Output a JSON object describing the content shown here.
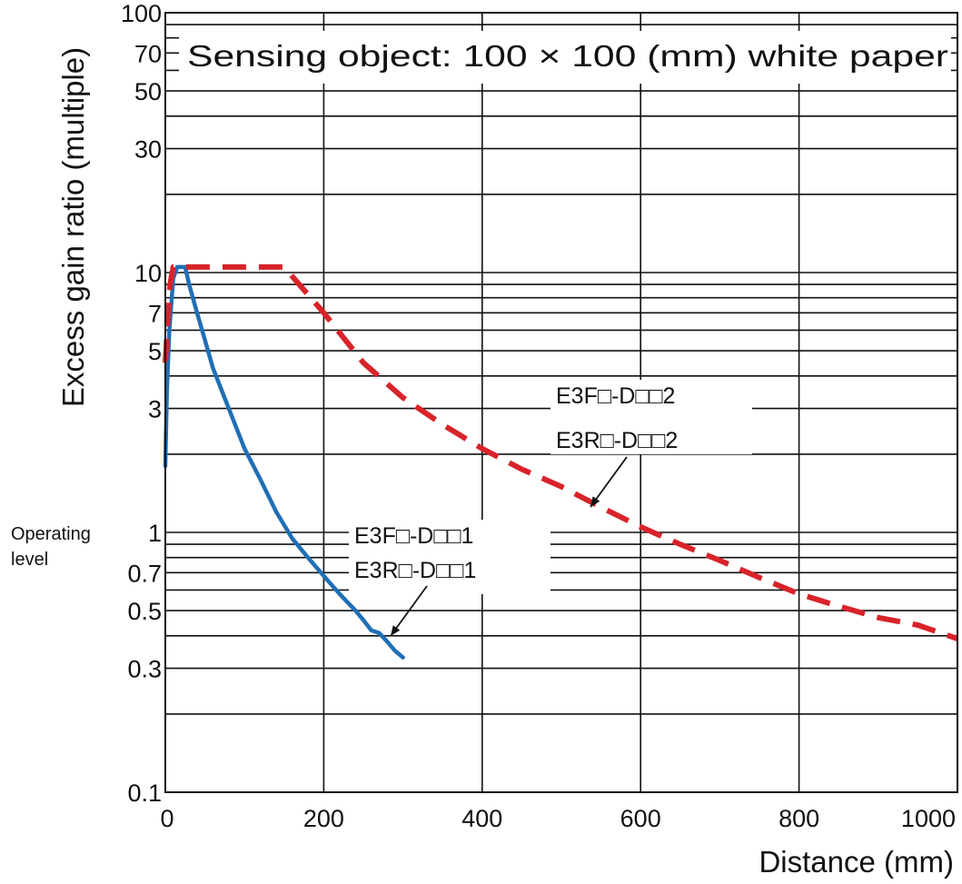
{
  "chart_data": {
    "type": "line",
    "xlabel": "Distance (mm)",
    "ylabel": "Excess gain ratio (multiple)",
    "annotation": "Sensing object: 100 × 100 (mm) white paper",
    "xlim": [
      0,
      1000
    ],
    "ylim": [
      0.1,
      100
    ],
    "yscale": "log",
    "grid": true,
    "x_ticks": [
      0,
      200,
      400,
      600,
      800,
      1000
    ],
    "x_tick_labels": [
      "0",
      "200",
      "400",
      "600",
      "800",
      "1000"
    ],
    "y_ticks": [
      0.1,
      0.3,
      0.5,
      0.7,
      1,
      3,
      5,
      7,
      10,
      30,
      50,
      70,
      100
    ],
    "y_tick_labels": [
      "0.1",
      "0.3",
      "0.5",
      "0.7",
      "1",
      "3",
      "5",
      "7",
      "10",
      "30",
      "50",
      "70",
      "100"
    ],
    "y_grid_lines": [
      0.2,
      0.3,
      0.4,
      0.5,
      0.6,
      0.7,
      0.8,
      0.9,
      1,
      2,
      3,
      4,
      5,
      6,
      7,
      8,
      9,
      10,
      20,
      30,
      40,
      50,
      60,
      70,
      80,
      90,
      100
    ],
    "operating_level_label": "Operating level",
    "series": [
      {
        "name_lines": [
          "E3F□-D□□1",
          "E3R□-D□□1"
        ],
        "color": "#1f6fb5",
        "style": "solid",
        "x": [
          0,
          2,
          5,
          10,
          15,
          20,
          25,
          30,
          40,
          50,
          60,
          80,
          100,
          120,
          140,
          160,
          180,
          200,
          220,
          240,
          250,
          260,
          270,
          280,
          290,
          300
        ],
        "y": [
          1.8,
          3.5,
          6,
          9.5,
          10.5,
          10.5,
          10.5,
          9,
          7,
          5.5,
          4.3,
          3,
          2.1,
          1.6,
          1.2,
          0.95,
          0.8,
          0.68,
          0.58,
          0.5,
          0.46,
          0.42,
          0.41,
          0.38,
          0.35,
          0.33
        ]
      },
      {
        "name_lines": [
          "E3F□-D□□2",
          "E3R□-D□□2"
        ],
        "color": "#d8232a",
        "style": "dashed",
        "x": [
          0,
          3,
          6,
          10,
          20,
          50,
          100,
          150,
          200,
          250,
          300,
          350,
          400,
          450,
          500,
          550,
          600,
          650,
          700,
          750,
          800,
          850,
          900,
          950,
          1000
        ],
        "y": [
          4.5,
          6.5,
          9,
          10.5,
          10.5,
          10.5,
          10.5,
          10.5,
          7,
          4.5,
          3.3,
          2.6,
          2.1,
          1.75,
          1.5,
          1.25,
          1.05,
          0.9,
          0.78,
          0.67,
          0.58,
          0.52,
          0.47,
          0.44,
          0.39
        ]
      }
    ]
  }
}
